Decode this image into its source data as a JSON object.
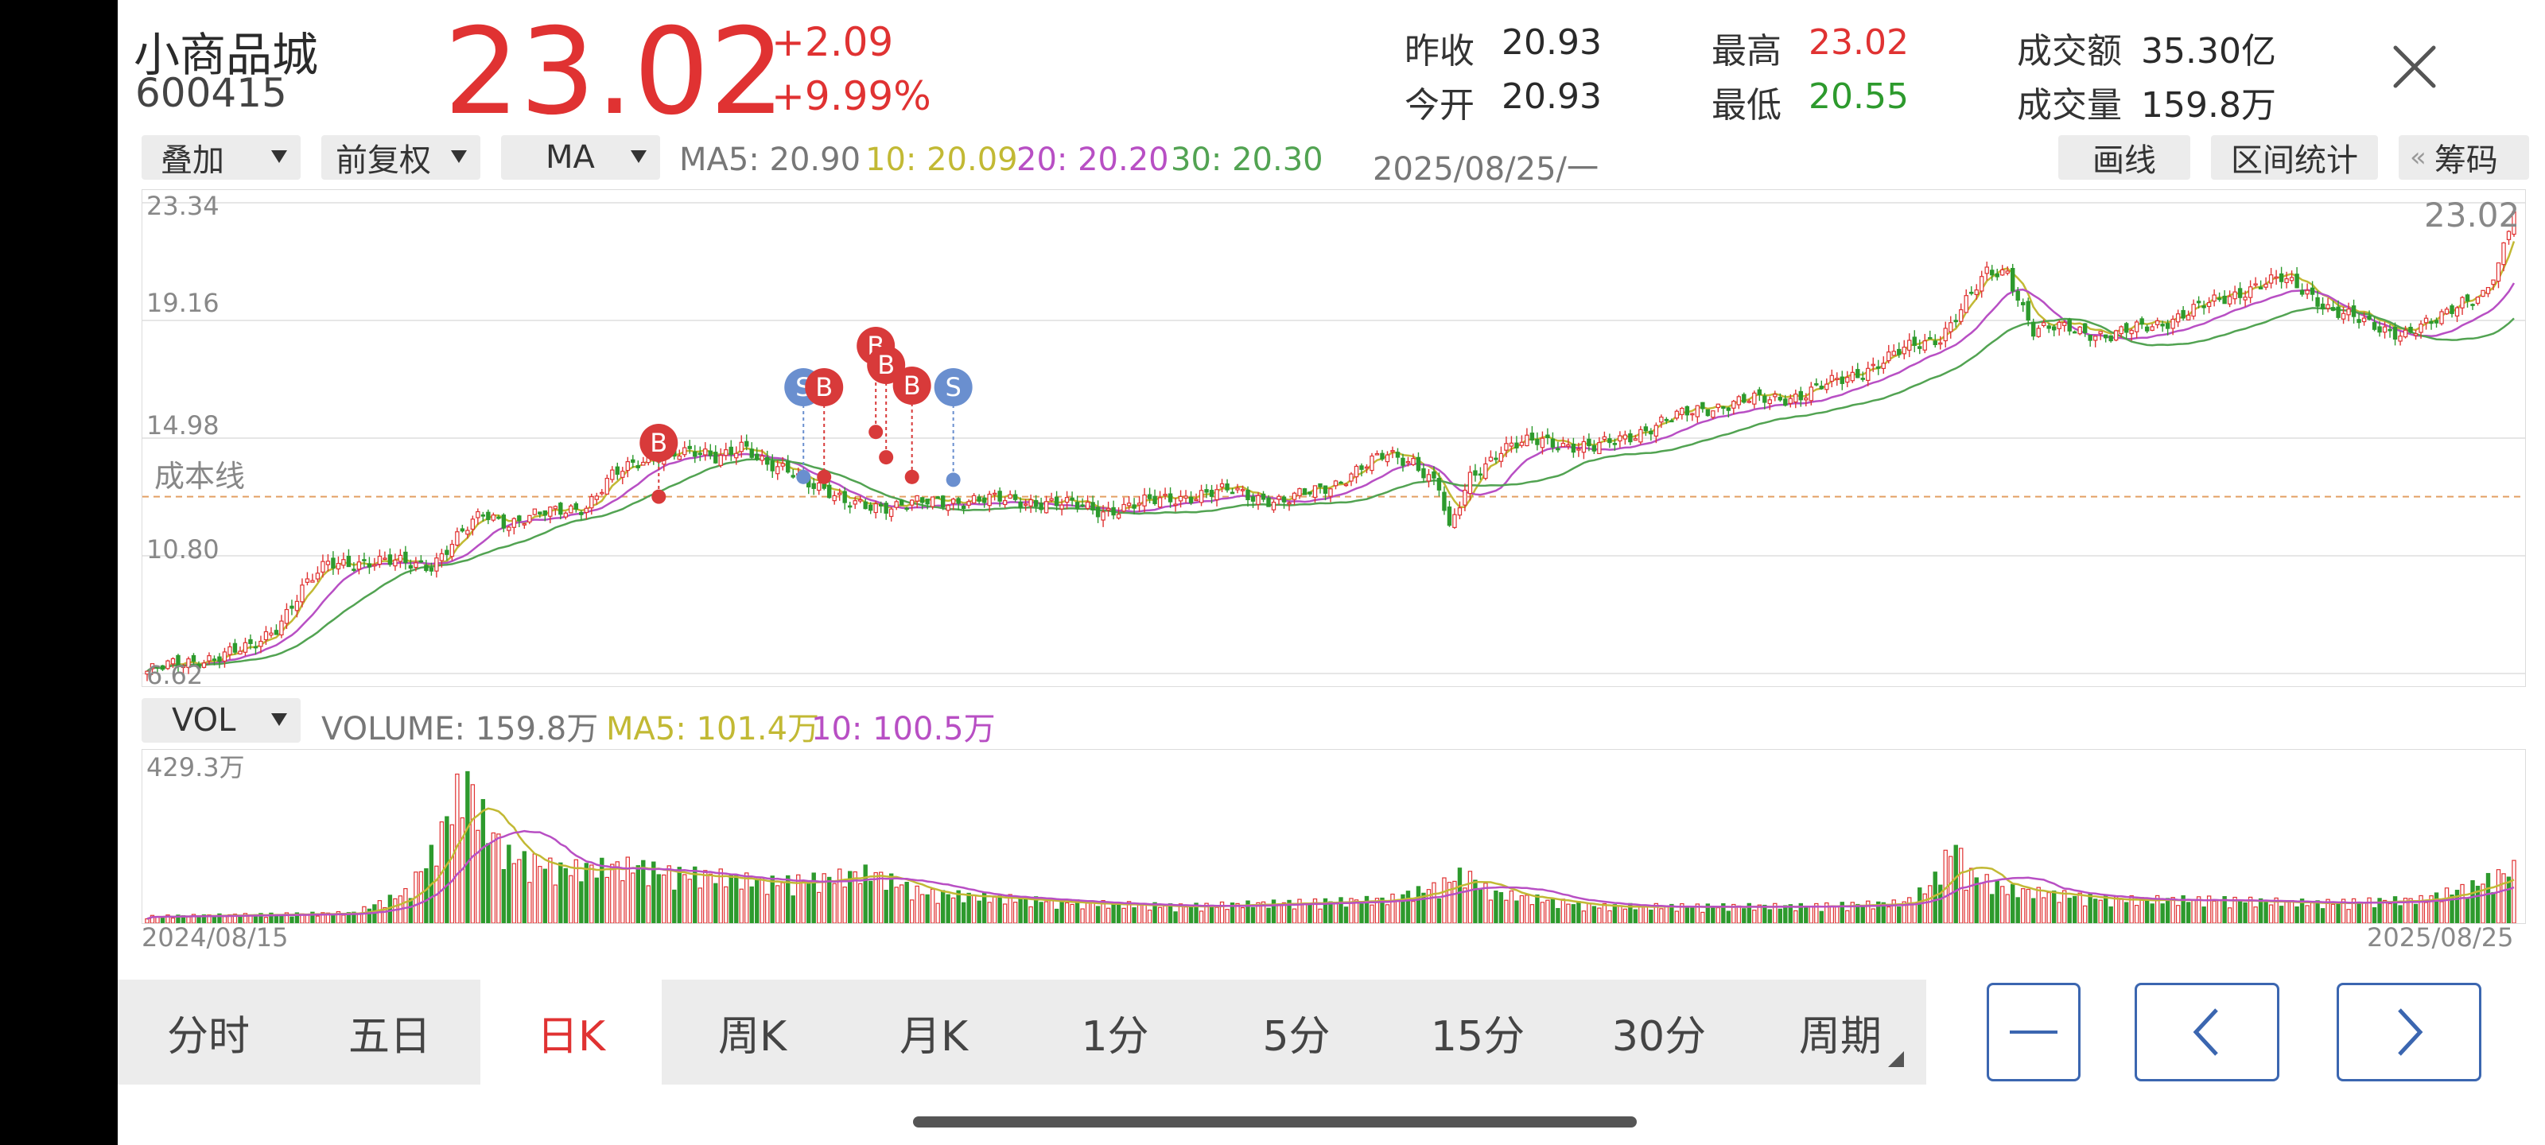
{
  "stock": {
    "name": "小商品城",
    "code": "600415",
    "price": "23.02",
    "change": "+2.09",
    "change_pct": "+9.99%",
    "stats": {
      "prev_close_label": "昨收",
      "prev_close": "20.93",
      "open_label": "今开",
      "open": "20.93",
      "high_label": "最高",
      "high": "23.02",
      "low_label": "最低",
      "low": "20.55",
      "amount_label": "成交额",
      "amount": "35.30亿",
      "volume_label": "成交量",
      "volume": "159.8万"
    }
  },
  "toolbar": {
    "overlay": "叠加",
    "adjust": "前复权",
    "indicator": "MA",
    "ma5": "MA5: 20.90",
    "ma10": "10: 20.09",
    "ma20": "20: 20.20",
    "ma30": "30: 20.30",
    "date": "2025/08/25/一",
    "draw_line": "画线",
    "range_stats": "区间统计",
    "chips": "筹码"
  },
  "chart_data": [
    {
      "type": "candlestick",
      "y_ticks": [
        "23.34",
        "19.16",
        "14.98",
        "10.80",
        "6.62"
      ],
      "ylim": [
        6.62,
        23.34
      ],
      "latest_price_label": "23.02",
      "cost_line_label": "成本线",
      "cost_line_value": 12.9,
      "x_start": "2024/08/15",
      "x_end": "2025/08/25",
      "close_path": [
        [
          0,
          6.7
        ],
        [
          10,
          7.1
        ],
        [
          20,
          7.5
        ],
        [
          25,
          8.3
        ],
        [
          30,
          9.6
        ],
        [
          35,
          10.5
        ],
        [
          40,
          10.6
        ],
        [
          55,
          10.5
        ],
        [
          60,
          11.4
        ],
        [
          65,
          12.3
        ],
        [
          70,
          12.0
        ],
        [
          75,
          12.2
        ],
        [
          85,
          12.6
        ],
        [
          90,
          13.6
        ],
        [
          96,
          14.2
        ],
        [
          100,
          14.5
        ],
        [
          105,
          14.4
        ],
        [
          110,
          14.3
        ],
        [
          115,
          14.8
        ],
        [
          120,
          13.9
        ],
        [
          125,
          13.8
        ],
        [
          130,
          13.3
        ],
        [
          135,
          12.6
        ],
        [
          145,
          12.6
        ],
        [
          160,
          12.8
        ],
        [
          175,
          12.7
        ],
        [
          185,
          12.4
        ],
        [
          200,
          12.9
        ],
        [
          210,
          13.1
        ],
        [
          220,
          12.7
        ],
        [
          230,
          13.4
        ],
        [
          240,
          14.4
        ],
        [
          245,
          14.2
        ],
        [
          250,
          13.2
        ],
        [
          252,
          11.6
        ],
        [
          256,
          13.6
        ],
        [
          262,
          14.6
        ],
        [
          270,
          14.9
        ],
        [
          280,
          14.6
        ],
        [
          290,
          15.3
        ],
        [
          300,
          16.0
        ],
        [
          310,
          16.3
        ],
        [
          320,
          16.5
        ],
        [
          330,
          17.2
        ],
        [
          340,
          18.1
        ],
        [
          347,
          18.6
        ],
        [
          352,
          19.8
        ],
        [
          356,
          20.8
        ],
        [
          360,
          20.9
        ],
        [
          365,
          18.8
        ],
        [
          372,
          18.9
        ],
        [
          380,
          18.6
        ],
        [
          390,
          19.1
        ],
        [
          400,
          19.8
        ],
        [
          408,
          20.4
        ],
        [
          413,
          20.6
        ],
        [
          418,
          20.2
        ],
        [
          423,
          19.5
        ],
        [
          430,
          19.0
        ],
        [
          437,
          18.7
        ],
        [
          443,
          19.1
        ],
        [
          448,
          19.9
        ],
        [
          452,
          20.1
        ],
        [
          455,
          21.0
        ],
        [
          458,
          23.02
        ]
      ],
      "ma_series": [
        {
          "name": "5",
          "color": "#c2b934",
          "offset": 0.2
        },
        {
          "name": "10",
          "color": "#b84fc4",
          "offset": -0.3
        },
        {
          "name": "20",
          "color": "#52a352",
          "offset": -0.8
        }
      ],
      "markers": [
        {
          "label": "B",
          "x": 99,
          "price": 12.9,
          "color": "#d83a3a"
        },
        {
          "label": "S",
          "x": 127,
          "price": 13.6,
          "color": "#6a8fcf"
        },
        {
          "label": "B",
          "x": 131,
          "price": 13.6,
          "color": "#d83a3a"
        },
        {
          "label": "B",
          "x": 141,
          "price": 15.2,
          "color": "#d83a3a"
        },
        {
          "label": "B",
          "x": 143,
          "price": 14.3,
          "color": "#d83a3a"
        },
        {
          "label": "B",
          "x": 148,
          "price": 13.6,
          "color": "#d83a3a"
        },
        {
          "label": "S",
          "x": 156,
          "price": 13.5,
          "color": "#6a8fcf"
        }
      ]
    },
    {
      "type": "bar",
      "indicator": "VOL",
      "legend_volume": "VOLUME: 159.8万",
      "legend_ma5": "MA5: 101.4万",
      "legend_ma10": "10: 100.5万",
      "y_top_label": "429.3万",
      "ylim": [
        0,
        429.3
      ],
      "bars_count": 458,
      "volume_path": [
        [
          0,
          20
        ],
        [
          40,
          30
        ],
        [
          50,
          90
        ],
        [
          55,
          200
        ],
        [
          60,
          380
        ],
        [
          62,
          420
        ],
        [
          66,
          280
        ],
        [
          70,
          200
        ],
        [
          80,
          160
        ],
        [
          95,
          170
        ],
        [
          100,
          150
        ],
        [
          110,
          140
        ],
        [
          120,
          120
        ],
        [
          130,
          130
        ],
        [
          140,
          150
        ],
        [
          150,
          90
        ],
        [
          160,
          80
        ],
        [
          180,
          60
        ],
        [
          200,
          50
        ],
        [
          220,
          60
        ],
        [
          240,
          70
        ],
        [
          250,
          110
        ],
        [
          255,
          150
        ],
        [
          260,
          90
        ],
        [
          270,
          70
        ],
        [
          280,
          50
        ],
        [
          300,
          50
        ],
        [
          320,
          50
        ],
        [
          340,
          60
        ],
        [
          345,
          110
        ],
        [
          350,
          240
        ],
        [
          352,
          150
        ],
        [
          360,
          100
        ],
        [
          380,
          70
        ],
        [
          400,
          70
        ],
        [
          420,
          60
        ],
        [
          440,
          70
        ],
        [
          450,
          110
        ],
        [
          458,
          160
        ]
      ]
    }
  ],
  "volume_panel": {
    "indicator": "VOL"
  },
  "bottom_tabs": [
    "分时",
    "五日",
    "日K",
    "周K",
    "月K",
    "1分",
    "5分",
    "15分",
    "30分",
    "周期"
  ],
  "active_tab": 2
}
